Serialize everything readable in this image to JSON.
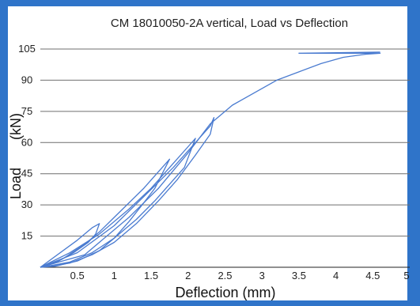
{
  "chart_data": {
    "type": "line",
    "title": "CM 18010050-2A vertical, Load vs Deflection",
    "xlabel": "Deflection (mm)",
    "ylabel_word": "Load",
    "ylabel_unit": "(kN)",
    "xlim": [
      0,
      5
    ],
    "ylim": [
      0,
      105
    ],
    "x_ticks": [
      {
        "value": 0.5,
        "label": "0.5"
      },
      {
        "value": 1,
        "label": "1"
      },
      {
        "value": 1.5,
        "label": "1.5"
      },
      {
        "value": 2,
        "label": "2"
      },
      {
        "value": 2.5,
        "label": "2.5"
      },
      {
        "value": 3,
        "label": "3"
      },
      {
        "value": 3.5,
        "label": "3.5"
      },
      {
        "value": 4,
        "label": "4"
      },
      {
        "value": 4.5,
        "label": "4.5"
      },
      {
        "value": 5,
        "label": "5"
      }
    ],
    "y_ticks": [
      {
        "value": 15,
        "label": "15"
      },
      {
        "value": 30,
        "label": "30"
      },
      {
        "value": 45,
        "label": "45"
      },
      {
        "value": 60,
        "label": "60"
      },
      {
        "value": 75,
        "label": "75"
      },
      {
        "value": 90,
        "label": "90"
      },
      {
        "value": 105,
        "label": "105"
      }
    ],
    "grid": "horizontal",
    "series": [
      {
        "color": "#4a7bd0",
        "x": [
          0.0,
          0.3,
          0.6,
          0.8,
          1.0,
          1.2,
          1.4,
          1.6,
          1.7,
          1.75,
          1.55,
          1.4,
          1.2,
          1.0,
          0.8,
          0.5,
          0.2,
          0.0
        ],
        "y": [
          0.0,
          4.0,
          11.0,
          17.0,
          24.0,
          31.0,
          38.0,
          46.0,
          50.0,
          52.0,
          38.0,
          31.0,
          22.0,
          14.0,
          8.0,
          3.0,
          0.5,
          0.0
        ]
      },
      {
        "color": "#4a7bd0",
        "x": [
          0.0,
          0.5,
          0.7,
          0.8,
          0.75,
          0.65,
          0.45,
          0.25,
          0.1,
          0.0
        ],
        "y": [
          0.0,
          13.0,
          19.0,
          21.0,
          16.0,
          12.0,
          7.0,
          3.0,
          1.0,
          0.0
        ]
      },
      {
        "color": "#4a7bd0",
        "x": [
          0.0,
          0.4,
          0.8,
          1.2,
          1.5,
          1.8,
          2.0,
          2.1,
          1.95,
          1.75,
          1.55,
          1.3,
          1.0,
          0.7,
          0.4,
          0.1,
          0.0
        ],
        "y": [
          0.0,
          7.0,
          16.0,
          28.0,
          38.0,
          50.0,
          58.0,
          62.0,
          48.0,
          40.0,
          32.0,
          23.0,
          14.0,
          7.0,
          2.5,
          0.5,
          0.0
        ]
      },
      {
        "color": "#4a7bd0",
        "x": [
          0.0,
          0.5,
          1.0,
          1.4,
          1.8,
          2.1,
          2.3,
          2.35,
          2.3,
          2.1,
          1.85,
          1.6,
          1.3,
          1.0,
          0.7,
          0.4,
          0.1,
          0.0
        ],
        "y": [
          0.0,
          7.0,
          20.0,
          34.0,
          48.0,
          60.0,
          68.0,
          72.0,
          64.0,
          54.0,
          42.0,
          32.0,
          21.0,
          12.0,
          6.0,
          2.0,
          0.5,
          0.0
        ]
      },
      {
        "color": "#4a7bd0",
        "x": [
          0.0,
          0.6,
          1.2,
          1.6,
          2.0,
          2.3,
          2.6,
          2.9,
          3.2,
          3.5,
          3.8,
          4.1,
          4.4,
          4.6,
          3.5,
          4.6
        ],
        "y": [
          0.0,
          6.0,
          24.0,
          38.0,
          55.0,
          69.0,
          78.0,
          84.0,
          90.0,
          94.0,
          98.0,
          101.0,
          102.5,
          103.0,
          103.0,
          103.5
        ]
      }
    ]
  }
}
